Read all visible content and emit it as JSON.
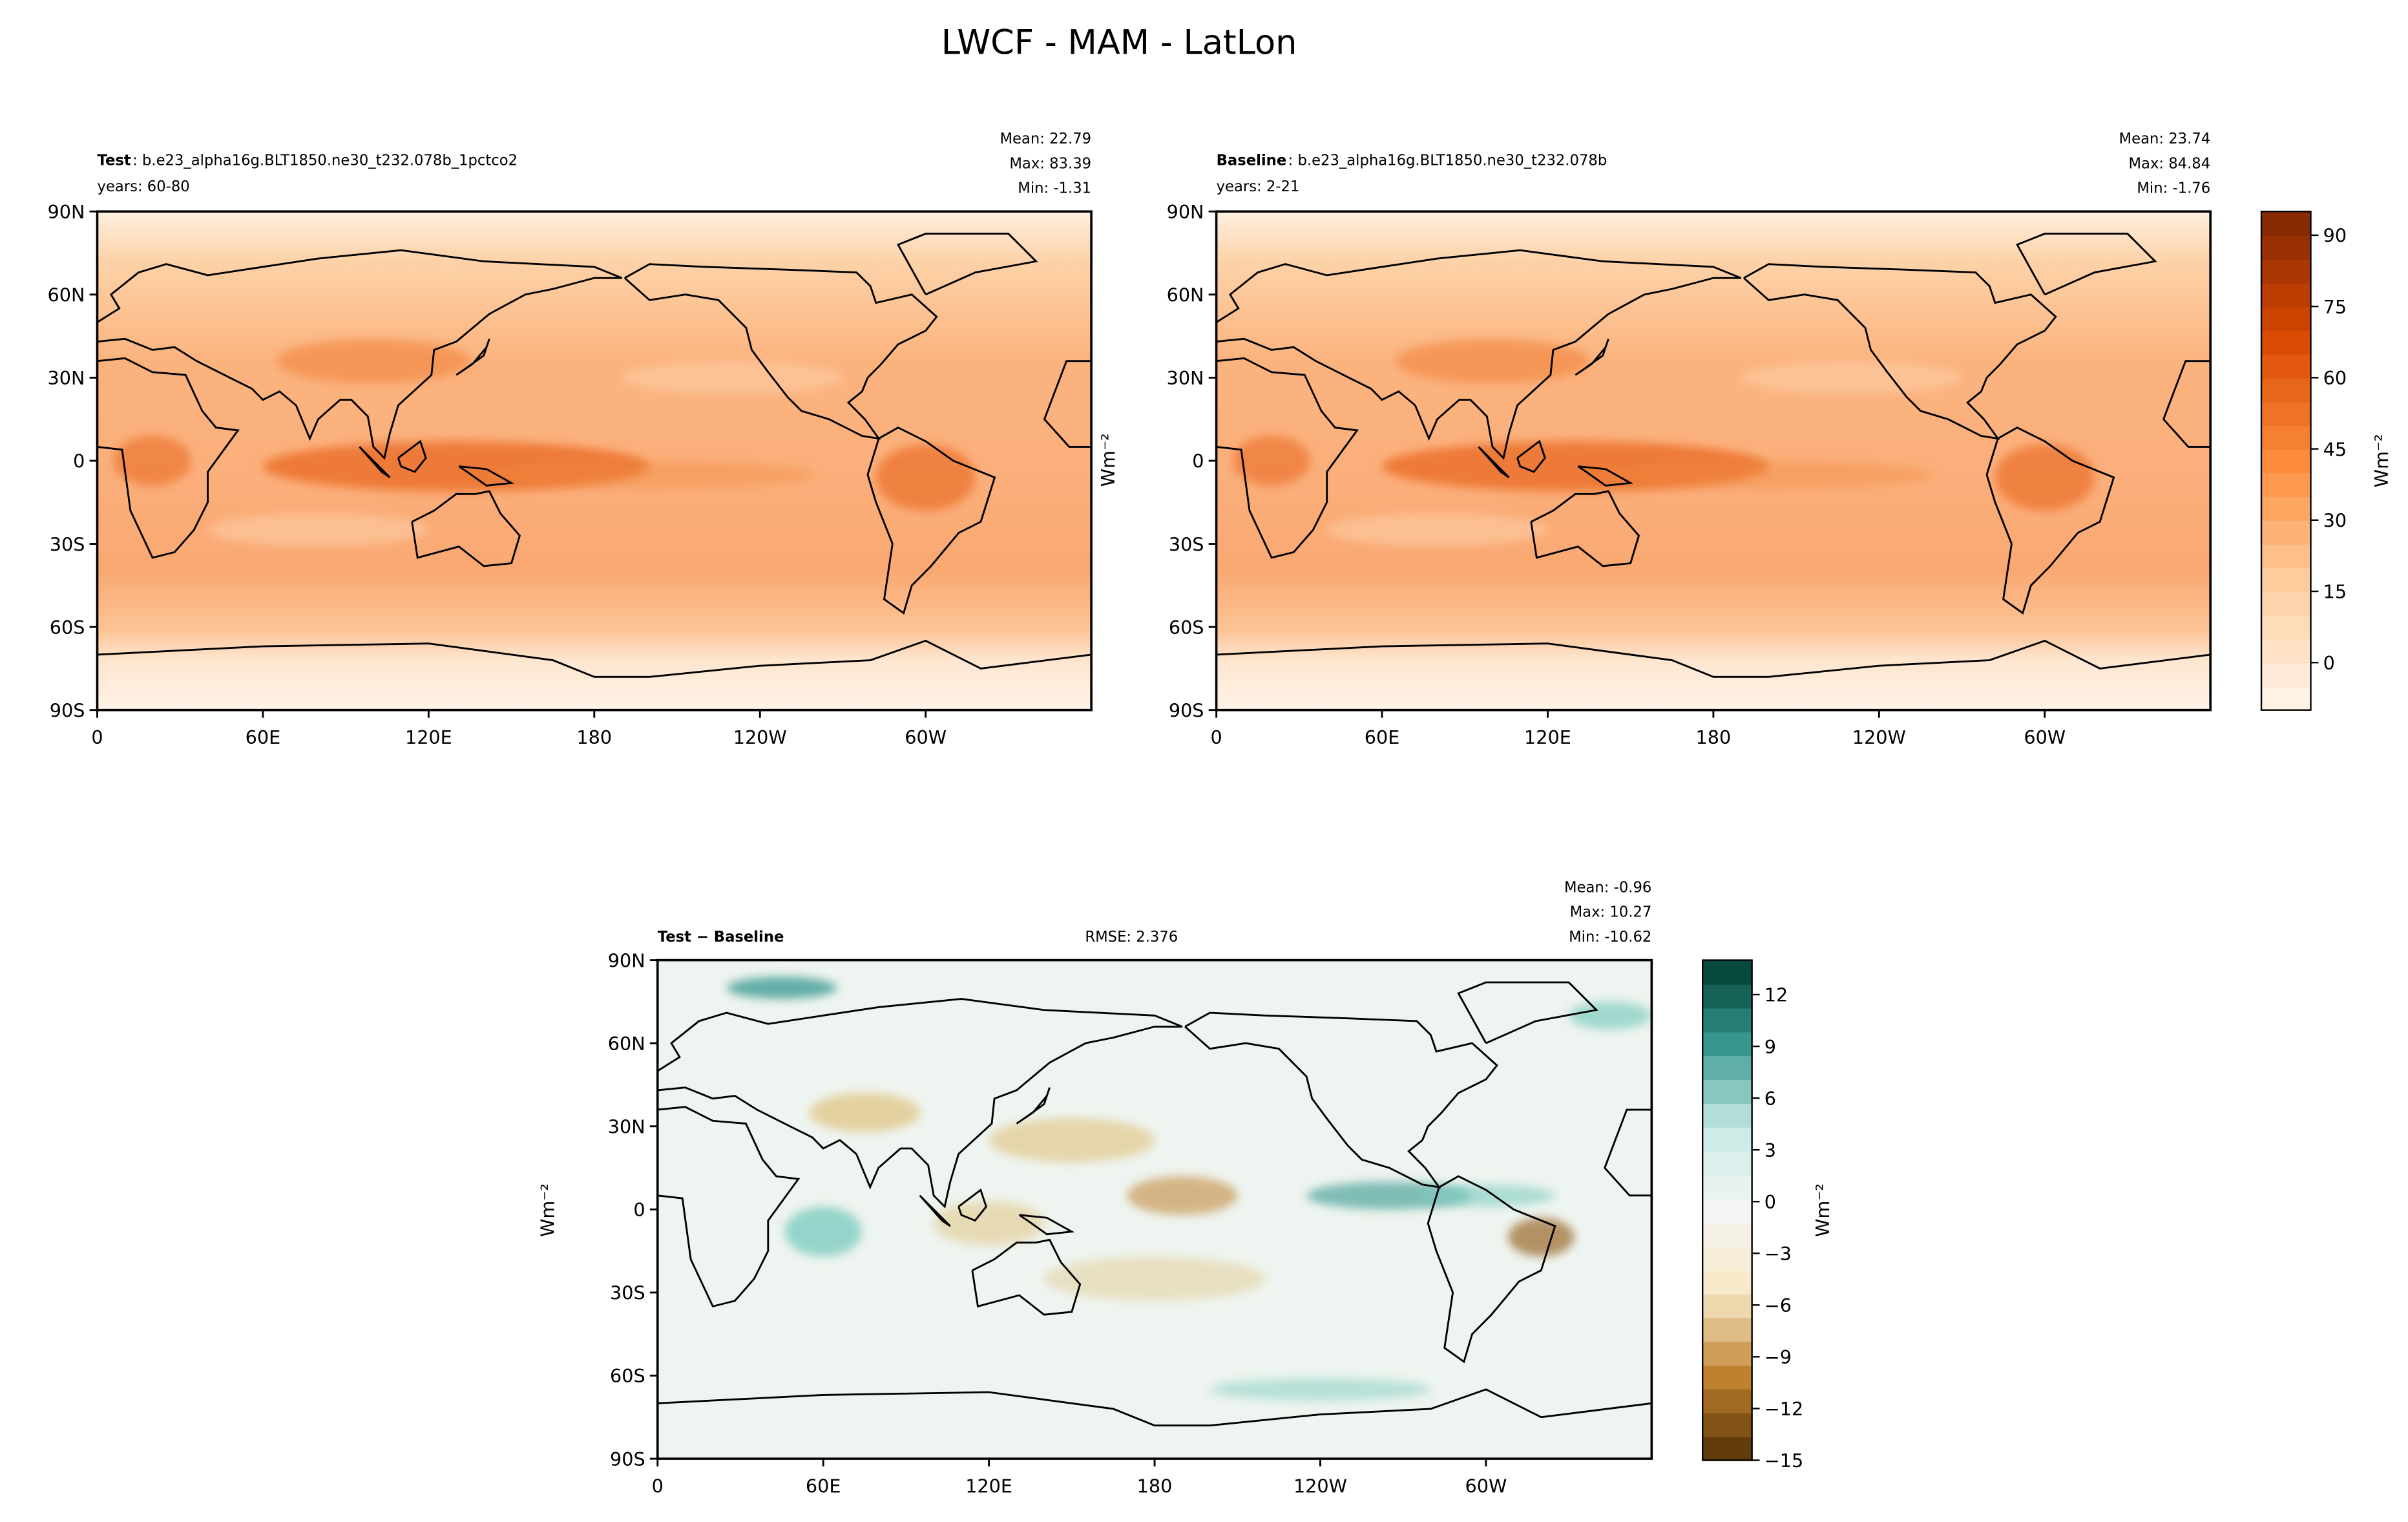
{
  "title": "LWCF - MAM - LatLon",
  "chart_data": [
    {
      "type": "map",
      "left_title": "Test",
      "left_subtitle": ": b.e23_alpha16g.BLT1850.ne30_t232.078b_1pctco2",
      "years": "years: 60-80",
      "stats": [
        "Mean: 22.79",
        "Max: 83.39",
        "Min: -1.31"
      ],
      "xlim": [
        0,
        360
      ],
      "xticks": [
        0,
        {
          "value": 60,
          "label": "60E"
        },
        {
          "value": 120,
          "label": "120E"
        },
        180,
        {
          "value": 240,
          "label": "120W"
        },
        {
          "value": 300,
          "label": "60W"
        }
      ],
      "ylim": [
        -90,
        90
      ],
      "yticks": [
        {
          "value": 90,
          "label": "90N"
        },
        {
          "value": 60,
          "label": "60N"
        },
        {
          "value": 30,
          "label": "30N"
        },
        0,
        {
          "value": -30,
          "label": "30S"
        },
        {
          "value": -60,
          "label": "60S"
        },
        {
          "value": -90,
          "label": "90S"
        }
      ]
    },
    {
      "type": "map",
      "left_title": "Baseline",
      "left_subtitle": ": b.e23_alpha16g.BLT1850.ne30_t232.078b",
      "years": "years: 2-21",
      "stats": [
        "Mean: 23.74",
        "Max: 84.84",
        "Min: -1.76"
      ],
      "ylabel": "Wm⁻²",
      "xlim": [
        0,
        360
      ],
      "xticks": [
        0,
        {
          "value": 60,
          "label": "60E"
        },
        {
          "value": 120,
          "label": "120E"
        },
        180,
        {
          "value": 240,
          "label": "120W"
        },
        {
          "value": 300,
          "label": "60W"
        }
      ],
      "ylim": [
        -90,
        90
      ],
      "yticks": [
        {
          "value": 90,
          "label": "90N"
        },
        {
          "value": 60,
          "label": "60N"
        },
        {
          "value": 30,
          "label": "30N"
        },
        0,
        {
          "value": -30,
          "label": "30S"
        },
        {
          "value": -60,
          "label": "60S"
        },
        {
          "value": -90,
          "label": "90S"
        }
      ],
      "colorbar": {
        "label": "Wm⁻²",
        "clim": [
          -10,
          95
        ],
        "ticks": [
          0,
          15,
          30,
          45,
          60,
          75,
          90
        ],
        "cmap": [
          "#fff5eb",
          "#fdd0a2",
          "#fd8d3c",
          "#d94801",
          "#7f2704"
        ]
      }
    },
    {
      "type": "map",
      "left_title": "Test − Baseline",
      "center_title": "RMSE: 2.376",
      "stats": [
        "Mean: -0.96",
        "Max: 10.27",
        "Min: -10.62"
      ],
      "ylabel": "Wm⁻²",
      "xlim": [
        0,
        360
      ],
      "xticks": [
        0,
        {
          "value": 60,
          "label": "60E"
        },
        {
          "value": 120,
          "label": "120E"
        },
        180,
        {
          "value": 240,
          "label": "120W"
        },
        {
          "value": 300,
          "label": "60W"
        }
      ],
      "ylim": [
        -90,
        90
      ],
      "yticks": [
        {
          "value": 90,
          "label": "90N"
        },
        {
          "value": 60,
          "label": "60N"
        },
        {
          "value": 30,
          "label": "30N"
        },
        0,
        {
          "value": -30,
          "label": "30S"
        },
        {
          "value": -60,
          "label": "60S"
        },
        {
          "value": -90,
          "label": "90S"
        }
      ],
      "colorbar": {
        "label": "Wm⁻²",
        "clim": [
          -15,
          14
        ],
        "ticks": [
          {
            "value": -15,
            "label": "−15"
          },
          {
            "value": -12,
            "label": "−12"
          },
          {
            "value": -9,
            "label": "−9"
          },
          {
            "value": -6,
            "label": "−6"
          },
          {
            "value": -3,
            "label": "−3"
          },
          0,
          3,
          6,
          9,
          12
        ],
        "cmap": [
          "#543005",
          "#bf812d",
          "#f6e8c3",
          "#f5f5f5",
          "#c7eae5",
          "#35978f",
          "#003c30"
        ]
      }
    }
  ]
}
